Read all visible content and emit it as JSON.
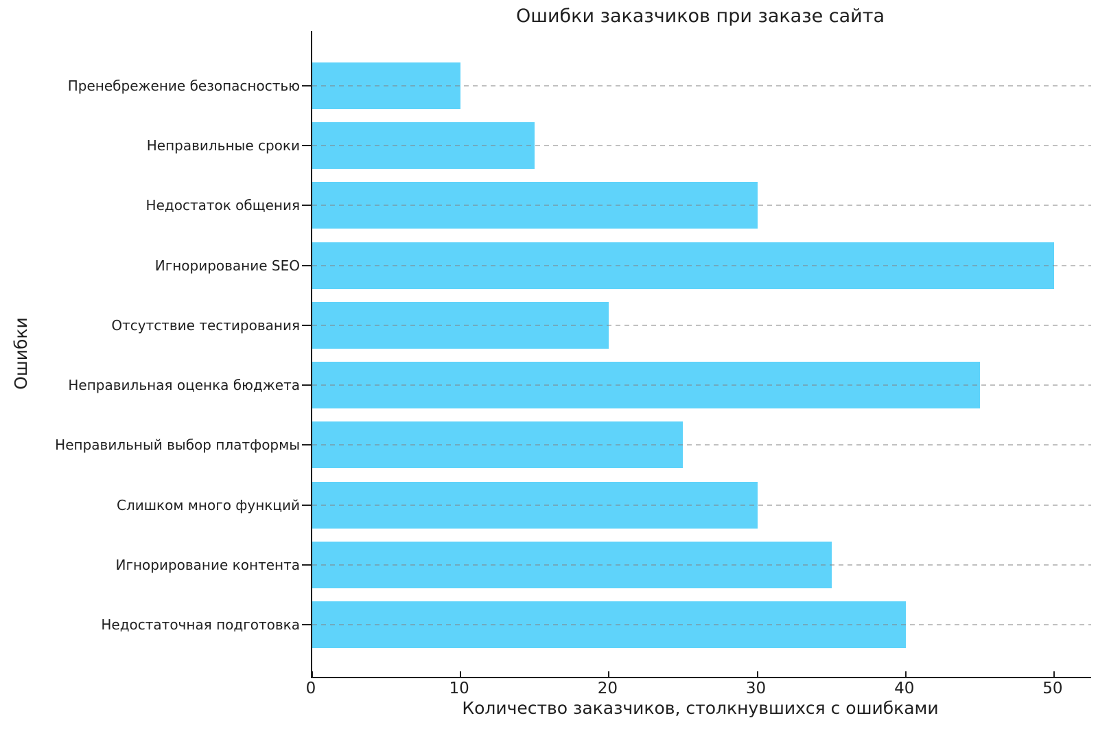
{
  "chart_data": {
    "type": "bar",
    "orientation": "horizontal",
    "title": "Ошибки заказчиков при заказе сайта",
    "xlabel": "Количество заказчиков, столкнувшихся с ошибками",
    "ylabel": "Ошибки",
    "categories_order": "top-to-bottom",
    "categories": [
      "Пренебрежение безопасностью",
      "Неправильные сроки",
      "Недостаток общения",
      "Игнорирование SEO",
      "Отсутствие тестирования",
      "Неправильная оценка бюджета",
      "Неправильный выбор платформы",
      "Слишком много функций",
      "Игнорирование контента",
      "Недостаточная подготовка"
    ],
    "values": [
      10,
      15,
      30,
      50,
      20,
      45,
      25,
      30,
      35,
      40
    ],
    "xticks": [
      0,
      10,
      20,
      30,
      40,
      50
    ],
    "xtick_labels": [
      "0",
      "10",
      "20",
      "30",
      "40",
      "50"
    ],
    "xlim": [
      0,
      52.5
    ],
    "grid": "horizontal-dashed",
    "legend": "none"
  },
  "colors": {
    "bar": "#5FD3FA",
    "grid": "rgba(130,130,130,0.5)",
    "text": "#1f1f1f",
    "background": "#ffffff"
  }
}
